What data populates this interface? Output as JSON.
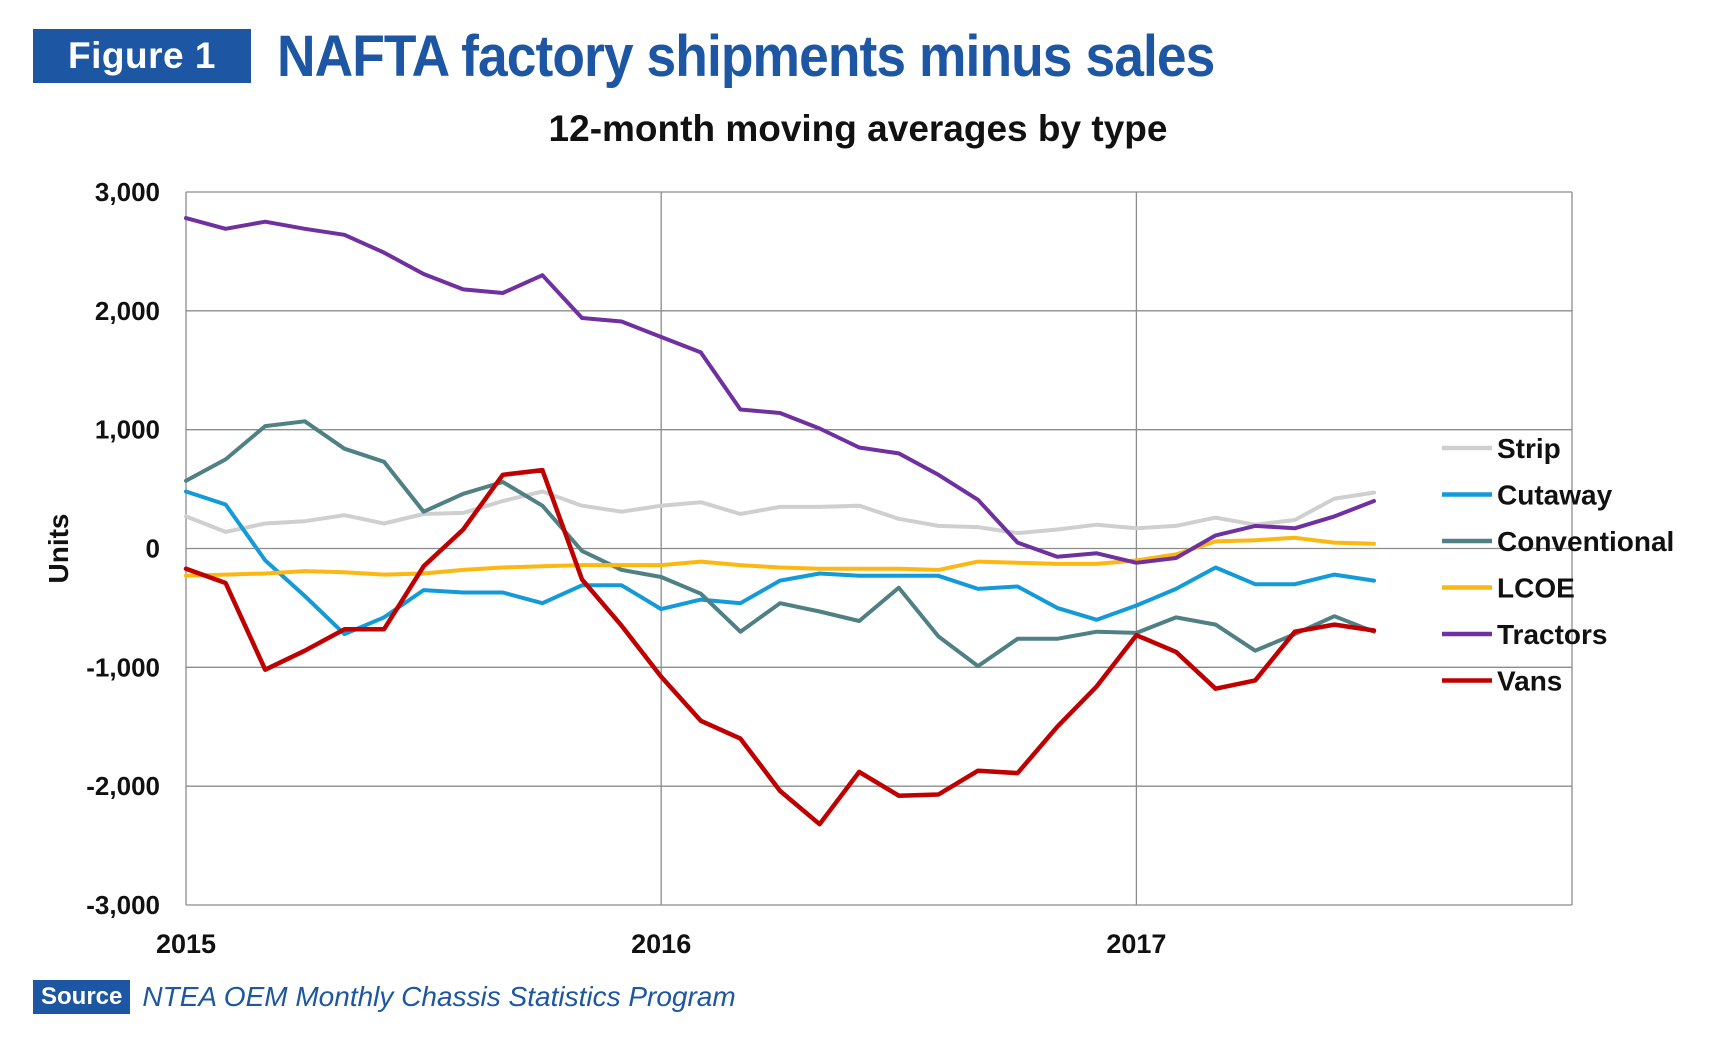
{
  "figure": {
    "badge": "Figure 1",
    "title": "NAFTA factory shipments minus sales",
    "subtitle": "12-month moving averages by type"
  },
  "source": {
    "badge": "Source",
    "text": "NTEA OEM Monthly Chassis Statistics Program"
  },
  "chart_data": {
    "type": "line",
    "title": "12-month moving averages by type",
    "xlabel": "",
    "ylabel": "Units",
    "ylim": [
      -3000,
      3000
    ],
    "yticks": [
      3000,
      2000,
      1000,
      0,
      -1000,
      -2000,
      -3000
    ],
    "ytick_labels": [
      "3,000",
      "2,000",
      "1,000",
      "0",
      "-1,000",
      "-2,000",
      "-3,000"
    ],
    "xlim": [
      2015.0,
      2017.9167
    ],
    "xticks": [
      2015,
      2016,
      2017
    ],
    "xtick_labels": [
      "2015",
      "2016",
      "2017"
    ],
    "x_start": "2015-01",
    "grid": true,
    "legend_position": "right",
    "series": [
      {
        "name": "Strip",
        "color": "#cfcfcf",
        "values": [
          270,
          140,
          210,
          230,
          280,
          210,
          290,
          300,
          400,
          480,
          360,
          310,
          360,
          390,
          290,
          350,
          350,
          360,
          250,
          190,
          180,
          130,
          160,
          200,
          170,
          190,
          260,
          200,
          240,
          420,
          470
        ]
      },
      {
        "name": "Cutaway",
        "color": "#139ad8",
        "values": [
          480,
          370,
          -100,
          -400,
          -720,
          -580,
          -350,
          -370,
          -370,
          -460,
          -310,
          -310,
          -510,
          -430,
          -460,
          -270,
          -210,
          -230,
          -230,
          -230,
          -340,
          -320,
          -500,
          -600,
          -480,
          -340,
          -160,
          -300,
          -300,
          -220,
          -270
        ]
      },
      {
        "name": "Conventional",
        "color": "#4e8084",
        "values": [
          570,
          750,
          1030,
          1070,
          840,
          730,
          310,
          460,
          560,
          360,
          -20,
          -180,
          -240,
          -380,
          -700,
          -460,
          -530,
          -610,
          -330,
          -740,
          -990,
          -760,
          -760,
          -700,
          -710,
          -580,
          -640,
          -860,
          -720,
          -570,
          -700
        ]
      },
      {
        "name": "LCOE",
        "color": "#fcb712",
        "values": [
          -230,
          -220,
          -210,
          -190,
          -200,
          -220,
          -210,
          -180,
          -160,
          -150,
          -140,
          -140,
          -140,
          -110,
          -140,
          -160,
          -170,
          -170,
          -170,
          -180,
          -110,
          -120,
          -130,
          -130,
          -100,
          -50,
          60,
          70,
          90,
          50,
          40
        ]
      },
      {
        "name": "Tractors",
        "color": "#7030a0",
        "values": [
          2780,
          2690,
          2750,
          2690,
          2640,
          2490,
          2310,
          2180,
          2150,
          2300,
          1940,
          1910,
          1780,
          1650,
          1170,
          1140,
          1010,
          850,
          800,
          620,
          410,
          50,
          -70,
          -40,
          -120,
          -80,
          110,
          190,
          170,
          270,
          400
        ]
      },
      {
        "name": "Vans",
        "color": "#c00000",
        "values": [
          -170,
          -290,
          -1020,
          -860,
          -680,
          -680,
          -150,
          160,
          620,
          660,
          -260,
          -650,
          -1080,
          -1450,
          -1600,
          -2040,
          -2320,
          -1880,
          -2080,
          -2070,
          -1870,
          -1890,
          -1500,
          -1160,
          -730,
          -870,
          -1180,
          -1110,
          -700,
          -640,
          -690
        ]
      }
    ]
  }
}
